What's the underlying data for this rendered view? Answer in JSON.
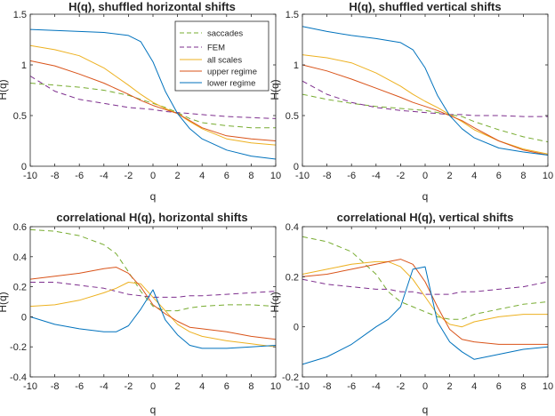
{
  "colors": {
    "saccades": "#77AC30",
    "FEM": "#7E2F8E",
    "all scales": "#EDB120",
    "upper regime": "#D95319",
    "lower regime": "#0072BD",
    "axis": "#262626"
  },
  "legend": [
    "saccades",
    "FEM",
    "all scales",
    "upper regime",
    "lower regime"
  ],
  "chart_data": [
    {
      "type": "line",
      "title": "H(q), shuffled horizontal shifts",
      "xlabel": "q",
      "ylabel": "H(q)",
      "xlim": [
        -10,
        10
      ],
      "ylim": [
        0,
        1.5
      ],
      "xticks": [
        "-10",
        "-8",
        "-6",
        "-4",
        "-2",
        "0",
        "2",
        "4",
        "6",
        "8",
        "10"
      ],
      "yticks": [
        "0",
        "0.5",
        "1",
        "1.5"
      ],
      "x": [
        -10,
        -8,
        -6,
        -4,
        -2,
        -1,
        0,
        1,
        2,
        3,
        4,
        6,
        8,
        10
      ],
      "series": [
        {
          "name": "saccades",
          "values": [
            0.82,
            0.8,
            0.78,
            0.75,
            0.7,
            0.66,
            0.62,
            0.58,
            0.53,
            0.47,
            0.43,
            0.4,
            0.38,
            0.38
          ]
        },
        {
          "name": "FEM",
          "values": [
            0.89,
            0.74,
            0.66,
            0.62,
            0.58,
            0.57,
            0.56,
            0.54,
            0.53,
            0.52,
            0.51,
            0.49,
            0.48,
            0.47
          ]
        },
        {
          "name": "all scales",
          "values": [
            1.19,
            1.15,
            1.09,
            0.97,
            0.8,
            0.71,
            0.63,
            0.57,
            0.52,
            0.44,
            0.37,
            0.27,
            0.23,
            0.21
          ]
        },
        {
          "name": "upper regime",
          "values": [
            1.04,
            0.99,
            0.91,
            0.82,
            0.71,
            0.65,
            0.6,
            0.56,
            0.52,
            0.45,
            0.38,
            0.3,
            0.27,
            0.25
          ]
        },
        {
          "name": "lower regime",
          "values": [
            1.35,
            1.34,
            1.33,
            1.32,
            1.29,
            1.23,
            1.03,
            0.74,
            0.52,
            0.37,
            0.27,
            0.16,
            0.1,
            0.07
          ]
        }
      ]
    },
    {
      "type": "line",
      "title": "H(q), shuffled vertical shifts",
      "xlabel": "q",
      "ylabel": "H(q)",
      "xlim": [
        -10,
        10
      ],
      "ylim": [
        0,
        1.5
      ],
      "xticks": [
        "-10",
        "-8",
        "-6",
        "-4",
        "-2",
        "0",
        "2",
        "4",
        "6",
        "8",
        "10"
      ],
      "yticks": [
        "0",
        "0.5",
        "1",
        "1.5"
      ],
      "x": [
        -10,
        -8,
        -6,
        -4,
        -2,
        -1,
        0,
        1,
        2,
        3,
        4,
        6,
        8,
        10
      ],
      "series": [
        {
          "name": "saccades",
          "values": [
            0.71,
            0.66,
            0.62,
            0.59,
            0.57,
            0.56,
            0.55,
            0.53,
            0.51,
            0.49,
            0.44,
            0.36,
            0.29,
            0.24
          ]
        },
        {
          "name": "FEM",
          "values": [
            0.84,
            0.71,
            0.63,
            0.58,
            0.55,
            0.54,
            0.53,
            0.52,
            0.51,
            0.51,
            0.5,
            0.5,
            0.49,
            0.49
          ]
        },
        {
          "name": "all scales",
          "values": [
            1.1,
            1.07,
            1.02,
            0.92,
            0.79,
            0.71,
            0.64,
            0.58,
            0.51,
            0.44,
            0.36,
            0.25,
            0.17,
            0.12
          ]
        },
        {
          "name": "upper regime",
          "values": [
            1.0,
            0.94,
            0.86,
            0.77,
            0.68,
            0.63,
            0.59,
            0.55,
            0.5,
            0.45,
            0.38,
            0.25,
            0.16,
            0.11
          ]
        },
        {
          "name": "lower regime",
          "values": [
            1.38,
            1.33,
            1.29,
            1.26,
            1.22,
            1.15,
            0.97,
            0.7,
            0.5,
            0.37,
            0.28,
            0.18,
            0.14,
            0.11
          ]
        }
      ]
    },
    {
      "type": "line",
      "title": "correlational H(q), horizontal shifts",
      "xlabel": "q",
      "ylabel": "H(q)",
      "xlim": [
        -10,
        10
      ],
      "ylim": [
        -0.4,
        0.6
      ],
      "xticks": [
        "-10",
        "-8",
        "-6",
        "-4",
        "-2",
        "0",
        "2",
        "4",
        "6",
        "8",
        "10"
      ],
      "yticks": [
        "-0.4",
        "-0.2",
        "0",
        "0.2",
        "0.4",
        "0.6"
      ],
      "x": [
        -10,
        -8,
        -6,
        -4,
        -3,
        -2,
        -1,
        0,
        1,
        2,
        3,
        4,
        6,
        8,
        10
      ],
      "series": [
        {
          "name": "saccades",
          "values": [
            0.58,
            0.57,
            0.54,
            0.48,
            0.42,
            0.3,
            0.17,
            0.07,
            0.04,
            0.04,
            0.06,
            0.07,
            0.08,
            0.08,
            0.07
          ]
        },
        {
          "name": "FEM",
          "values": [
            0.23,
            0.23,
            0.21,
            0.19,
            0.17,
            0.15,
            0.14,
            0.13,
            0.13,
            0.13,
            0.14,
            0.14,
            0.15,
            0.16,
            0.17
          ]
        },
        {
          "name": "all scales",
          "values": [
            0.07,
            0.08,
            0.11,
            0.16,
            0.19,
            0.23,
            0.22,
            0.13,
            0.04,
            -0.05,
            -0.1,
            -0.13,
            -0.16,
            -0.18,
            -0.2
          ]
        },
        {
          "name": "upper regime",
          "values": [
            0.25,
            0.27,
            0.29,
            0.32,
            0.33,
            0.29,
            0.2,
            0.08,
            0.02,
            -0.03,
            -0.07,
            -0.08,
            -0.1,
            -0.13,
            -0.15
          ]
        },
        {
          "name": "lower regime",
          "values": [
            0.0,
            -0.05,
            -0.08,
            -0.1,
            -0.1,
            -0.06,
            0.05,
            0.18,
            -0.02,
            -0.12,
            -0.19,
            -0.21,
            -0.21,
            -0.2,
            -0.19
          ]
        }
      ]
    },
    {
      "type": "line",
      "title": "correlational H(q), vertical shifts",
      "xlabel": "q",
      "ylabel": "H(q)",
      "xlim": [
        -10,
        10
      ],
      "ylim": [
        -0.2,
        0.4
      ],
      "xticks": [
        "-10",
        "-8",
        "-6",
        "-4",
        "-2",
        "0",
        "2",
        "4",
        "6",
        "8",
        "10"
      ],
      "yticks": [
        "-0.2",
        "0",
        "0.2",
        "0.4"
      ],
      "x": [
        -10,
        -8,
        -6,
        -4,
        -3,
        -2,
        -1,
        0,
        1,
        2,
        3,
        4,
        6,
        8,
        10
      ],
      "series": [
        {
          "name": "saccades",
          "values": [
            0.36,
            0.34,
            0.3,
            0.21,
            0.14,
            0.1,
            0.08,
            0.06,
            0.04,
            0.03,
            0.03,
            0.05,
            0.07,
            0.09,
            0.1
          ]
        },
        {
          "name": "FEM",
          "values": [
            0.19,
            0.17,
            0.16,
            0.15,
            0.15,
            0.14,
            0.14,
            0.13,
            0.13,
            0.13,
            0.14,
            0.14,
            0.15,
            0.16,
            0.18
          ]
        },
        {
          "name": "all scales",
          "values": [
            0.21,
            0.23,
            0.25,
            0.26,
            0.26,
            0.24,
            0.19,
            0.12,
            0.05,
            0.01,
            0.0,
            0.02,
            0.04,
            0.05,
            0.05
          ]
        },
        {
          "name": "upper regime",
          "values": [
            0.2,
            0.21,
            0.23,
            0.25,
            0.26,
            0.27,
            0.25,
            0.18,
            0.08,
            -0.01,
            -0.05,
            -0.06,
            -0.07,
            -0.07,
            -0.07
          ]
        },
        {
          "name": "lower regime",
          "values": [
            -0.15,
            -0.12,
            -0.07,
            0.0,
            0.03,
            0.08,
            0.23,
            0.24,
            0.02,
            -0.06,
            -0.1,
            -0.13,
            -0.11,
            -0.09,
            -0.08
          ]
        }
      ]
    }
  ]
}
